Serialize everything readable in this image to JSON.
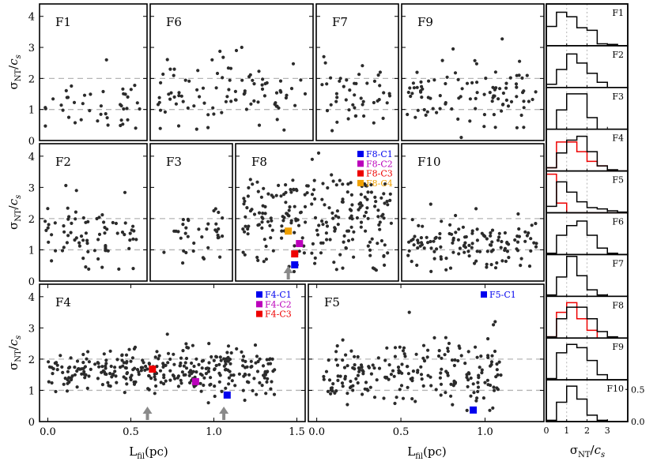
{
  "chart_data": [
    {
      "type": "scatter",
      "group": "filament-panels",
      "ylabel": "σ_NT/c_s",
      "xlabel": "L_fil(pc)",
      "ylim": [
        0,
        4.4
      ],
      "yticks": [
        0,
        1,
        2,
        3,
        4
      ],
      "reference_lines_y": [
        1,
        2
      ],
      "panels": [
        {
          "id": "F1",
          "label": "F1",
          "xlim": [
            0,
            0.61
          ],
          "n": 42,
          "x_from": 0.03,
          "x_to": 0.57,
          "y_mean": 1.2,
          "y_sd": 0.45,
          "extra": [
            [
              0.38,
              2.6
            ]
          ]
        },
        {
          "id": "F6",
          "label": "F6",
          "xlim": [
            0,
            1.21
          ],
          "n": 90,
          "x_from": 0.04,
          "x_to": 1.17,
          "y_mean": 1.5,
          "y_sd": 0.55,
          "extra": [
            [
              0.68,
              3.0
            ],
            [
              0.64,
              2.9
            ],
            [
              0.46,
              2.6
            ]
          ]
        },
        {
          "id": "F7",
          "label": "F7",
          "xlim": [
            0,
            0.54
          ],
          "n": 45,
          "x_from": 0.03,
          "x_to": 0.5,
          "y_mean": 1.35,
          "y_sd": 0.45,
          "extra": [
            [
              0.05,
              2.7
            ],
            [
              0.06,
              2.5
            ]
          ]
        },
        {
          "id": "F9",
          "label": "F9",
          "xlim": [
            0,
            1.05
          ],
          "n": 95,
          "x_from": 0.04,
          "x_to": 1.0,
          "y_mean": 1.45,
          "y_sd": 0.5,
          "extra": [
            [
              0.38,
              2.95
            ],
            [
              0.87,
              2.55
            ],
            [
              0.44,
              0.1
            ]
          ]
        },
        {
          "id": "F2",
          "label": "F2",
          "xlim": [
            0,
            0.67
          ],
          "n": 75,
          "x_from": 0.03,
          "x_to": 0.62,
          "y_mean": 1.45,
          "y_sd": 0.5,
          "extra": [
            [
              0.23,
              2.9
            ]
          ]
        },
        {
          "id": "F3",
          "label": "F3",
          "xlim": [
            0,
            0.53
          ],
          "n": 35,
          "x_from": 0.06,
          "x_to": 0.48,
          "y_mean": 1.5,
          "y_sd": 0.35,
          "extra": [
            [
              0.41,
              2.25
            ],
            [
              0.44,
              2.2
            ]
          ]
        },
        {
          "id": "F8",
          "label": "F8",
          "xlim": [
            0,
            1.02
          ],
          "n": 230,
          "x_from": 0.04,
          "x_to": 0.98,
          "y_mean": 2.0,
          "y_sd": 0.75,
          "extra": [
            [
              0.52,
              4.1
            ],
            [
              0.48,
              3.9
            ],
            [
              0.6,
              3.4
            ]
          ],
          "clumps": [
            {
              "label": "F8-C1",
              "x": 0.37,
              "y": 0.52,
              "color": "#0000ee"
            },
            {
              "label": "F8-C2",
              "x": 0.4,
              "y": 1.2,
              "color": "#bb00bb"
            },
            {
              "label": "F8-C3",
              "x": 0.37,
              "y": 0.87,
              "color": "#ee0000"
            },
            {
              "label": "F8-C4",
              "x": 0.33,
              "y": 1.6,
              "color": "#f0a000"
            }
          ],
          "arrows_x": [
            0.33
          ]
        },
        {
          "id": "F10",
          "label": "F10",
          "xlim": [
            0,
            1.05
          ],
          "n": 130,
          "x_from": 0.04,
          "x_to": 1.0,
          "y_mean": 1.2,
          "y_sd": 0.4,
          "extra": [
            [
              0.86,
              2.15
            ]
          ]
        },
        {
          "id": "F4",
          "label": "F4",
          "xlim": [
            -0.05,
            1.55
          ],
          "xticks": [
            0.0,
            0.5,
            1.0,
            1.5
          ],
          "n": 320,
          "x_from": 0.0,
          "x_to": 1.37,
          "y_mean": 1.6,
          "y_sd": 0.35,
          "extra": [
            [
              0.72,
              2.8
            ],
            [
              1.25,
              2.45
            ],
            [
              0.97,
              2.5
            ]
          ],
          "clumps": [
            {
              "label": "F4-C1",
              "x": 1.08,
              "y": 0.85,
              "color": "#0000ee"
            },
            {
              "label": "F4-C2",
              "x": 0.89,
              "y": 1.28,
              "color": "#bb00bb"
            },
            {
              "label": "F4-C3",
              "x": 0.63,
              "y": 1.68,
              "color": "#ee0000"
            }
          ],
          "arrows_x": [
            0.6,
            1.06
          ]
        },
        {
          "id": "F5",
          "label": "F5",
          "xlim": [
            -0.05,
            1.35
          ],
          "xticks": [
            0.0,
            0.5,
            1.0
          ],
          "n": 210,
          "x_from": 0.04,
          "x_to": 1.1,
          "y_mean": 1.55,
          "y_sd": 0.5,
          "extra": [
            [
              1.05,
              3.1
            ],
            [
              0.55,
              3.5
            ],
            [
              1.06,
              3.2
            ]
          ],
          "clumps": [
            {
              "label": "F5-C1",
              "x": 0.93,
              "y": 0.37,
              "color": "#0000ee"
            }
          ]
        }
      ]
    },
    {
      "type": "histogram",
      "group": "side-histograms",
      "xlabel": "σ_NT/c_s",
      "xlim": [
        0,
        4
      ],
      "xticks": [
        0,
        1,
        2,
        3
      ],
      "yticks": [
        0.0,
        0.5
      ],
      "ylim": [
        0,
        0.6
      ],
      "bins": [
        0,
        0.5,
        1,
        1.5,
        2,
        2.5,
        3,
        3.5,
        4
      ],
      "reference_lines_x": [
        1,
        2
      ],
      "panels": [
        {
          "label": "F1",
          "hist": [
            0.3,
            0.52,
            0.45,
            0.28,
            0.24,
            0.03,
            0.02,
            0
          ],
          "red": null
        },
        {
          "label": "F2",
          "hist": [
            0.05,
            0.28,
            0.52,
            0.38,
            0.22,
            0.08,
            0,
            0
          ],
          "red": null
        },
        {
          "label": "F3",
          "hist": [
            0,
            0.3,
            0.55,
            0.55,
            0.18,
            0,
            0,
            0
          ],
          "red": null
        },
        {
          "label": "F4",
          "hist": [
            0.05,
            0.28,
            0.48,
            0.54,
            0.3,
            0.08,
            0.02,
            0
          ],
          "red": [
            0.05,
            0.45,
            0.45,
            0.3,
            0.15,
            0.08,
            0,
            0
          ]
        },
        {
          "label": "F5",
          "hist": [
            0.1,
            0.48,
            0.32,
            0.17,
            0.08,
            0.06,
            0.03,
            0.01
          ],
          "red": [
            0.6,
            0.15,
            0,
            0,
            0,
            0,
            0,
            0
          ]
        },
        {
          "label": "F6",
          "hist": [
            0.02,
            0.3,
            0.45,
            0.52,
            0.3,
            0.1,
            0.02,
            0
          ],
          "red": null
        },
        {
          "label": "F7",
          "hist": [
            0.02,
            0.3,
            0.62,
            0.32,
            0.1,
            0.02,
            0,
            0
          ],
          "red": null
        },
        {
          "label": "F8",
          "hist": [
            0.02,
            0.3,
            0.48,
            0.48,
            0.3,
            0.1,
            0.02,
            0
          ],
          "red": [
            0.02,
            0.4,
            0.55,
            0.3,
            0.12,
            0,
            0,
            0
          ]
        },
        {
          "label": "F9",
          "hist": [
            0.02,
            0.42,
            0.55,
            0.5,
            0.3,
            0.08,
            0,
            0
          ],
          "red": null
        },
        {
          "label": "F10",
          "hist": [
            0.02,
            0.3,
            0.55,
            0.35,
            0.1,
            0.02,
            0,
            0
          ],
          "red": null
        }
      ]
    }
  ]
}
